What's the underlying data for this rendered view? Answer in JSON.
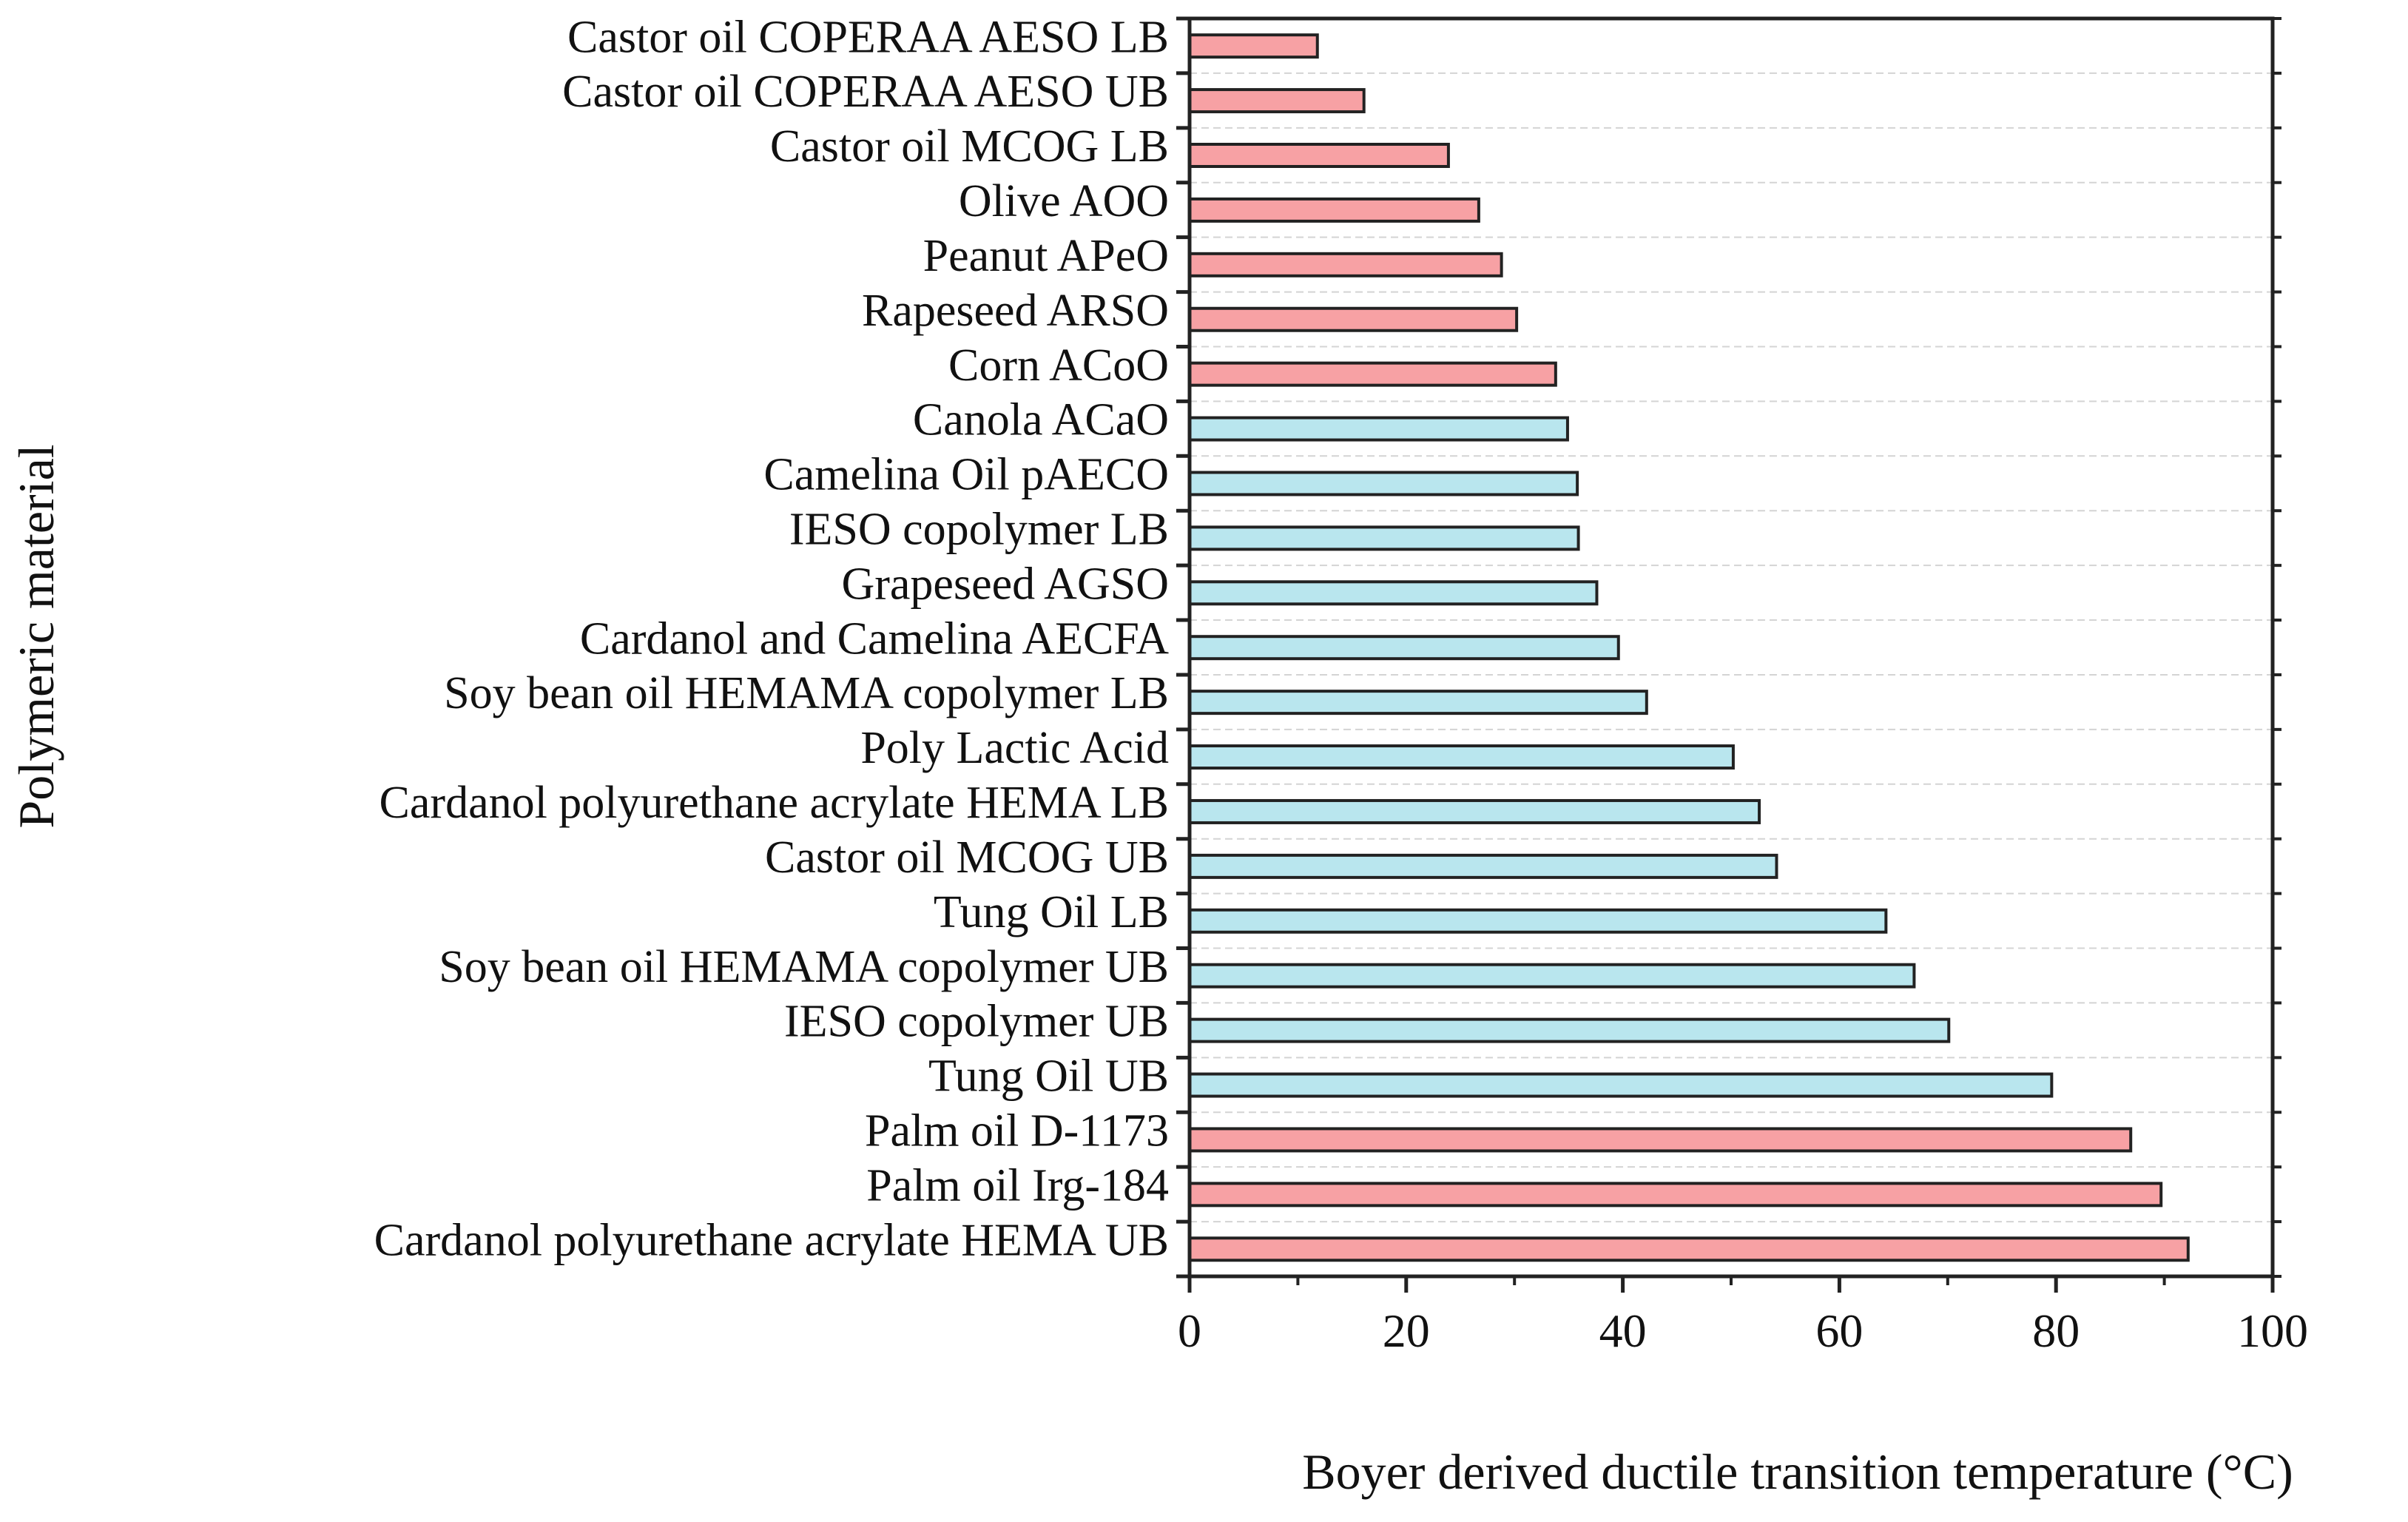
{
  "chart_data": {
    "type": "bar",
    "orientation": "horizontal",
    "title": "",
    "xlabel": "Boyer derived ductile transition temperature (°C)",
    "ylabel": "Polymeric material",
    "xlim": [
      0,
      100
    ],
    "xticks": [
      0,
      20,
      40,
      60,
      80,
      100
    ],
    "grid": "horizontal dashed",
    "legend": "none",
    "colors": {
      "red": "#f7a1a4",
      "blue": "#b9e6ee",
      "edge": "#222222",
      "grid": "#d4d4d4"
    },
    "categories": [
      "Castor oil COPERAA AESO LB",
      "Castor oil COPERAA AESO UB",
      "Castor oil MCOG LB",
      "Olive AOO",
      "Peanut APeO",
      "Rapeseed ARSO",
      "Corn ACoO",
      "Canola ACaO",
      "Camelina Oil pAECO",
      "IESO copolymer LB",
      "Grapeseed AGSO",
      "Cardanol and Camelina AECFA",
      "Soy bean oil HEMAMA copolymer LB",
      "Poly Lactic Acid",
      "Cardanol polyurethane acrylate HEMA LB",
      "Castor oil MCOG UB",
      "Tung Oil LB",
      "Soy bean oil HEMAMA copolymer UB",
      "IESO copolymer UB",
      "Tung Oil UB",
      "Palm oil D-1173",
      "Palm oil Irg-184",
      "Cardanol polyurethane acrylate HEMA UB"
    ],
    "values": [
      11.8,
      16.1,
      23.9,
      26.7,
      28.8,
      30.2,
      33.8,
      34.9,
      35.8,
      35.9,
      37.6,
      39.6,
      42.2,
      50.2,
      52.6,
      54.2,
      64.3,
      66.9,
      70.1,
      79.6,
      86.9,
      89.7,
      92.2
    ],
    "bar_colors": [
      "red",
      "red",
      "red",
      "red",
      "red",
      "red",
      "red",
      "blue",
      "blue",
      "blue",
      "blue",
      "blue",
      "blue",
      "blue",
      "blue",
      "blue",
      "blue",
      "blue",
      "blue",
      "blue",
      "red",
      "red",
      "red"
    ]
  }
}
